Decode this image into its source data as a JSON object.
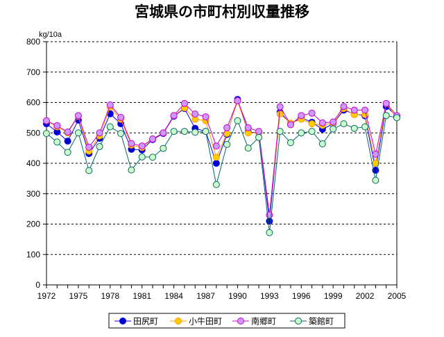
{
  "chart_data": {
    "type": "line",
    "title": "宮城県の市町村別収量推移",
    "ylabel": "kg/10a",
    "xlabel": "",
    "x": [
      1972,
      1973,
      1974,
      1975,
      1976,
      1977,
      1978,
      1979,
      1980,
      1981,
      1982,
      1983,
      1984,
      1985,
      1986,
      1987,
      1988,
      1989,
      1990,
      1991,
      1992,
      1993,
      1994,
      1995,
      1996,
      1997,
      1998,
      1999,
      2000,
      2001,
      2002,
      2003,
      2004,
      2005
    ],
    "xticks": [
      "1972",
      "1975",
      "1978",
      "1981",
      "1984",
      "1987",
      "1990",
      "1993",
      "1996",
      "1999",
      "2002",
      "2005"
    ],
    "xlim": [
      1972,
      2005
    ],
    "yticks": [
      "0",
      "100",
      "200",
      "300",
      "400",
      "500",
      "600",
      "700",
      "800"
    ],
    "ylim": [
      0,
      800
    ],
    "grid": "horizontal dashed",
    "legend_position": "bottom",
    "series": [
      {
        "name": "田尻町",
        "color": "#0000ff",
        "marker_fill": "#0000cc",
        "values": [
          530,
          503,
          473,
          542,
          432,
          482,
          563,
          530,
          446,
          444,
          478,
          498,
          555,
          580,
          515,
          505,
          400,
          495,
          610,
          503,
          500,
          210,
          568,
          530,
          550,
          535,
          512,
          530,
          575,
          562,
          556,
          377,
          587,
          555
        ]
      },
      {
        "name": "小牛田町",
        "color": "#ff9900",
        "marker_fill": "#ffcc00",
        "values": [
          540,
          520,
          500,
          555,
          440,
          490,
          585,
          545,
          460,
          452,
          480,
          500,
          557,
          582,
          545,
          540,
          420,
          498,
          605,
          500,
          500,
          230,
          562,
          532,
          545,
          530,
          525,
          532,
          580,
          560,
          560,
          400,
          596,
          550
        ]
      },
      {
        "name": "南郷町",
        "color": "#cc00cc",
        "marker_fill": "#cc99ff",
        "values": [
          540,
          524,
          503,
          557,
          453,
          500,
          592,
          551,
          465,
          457,
          480,
          500,
          557,
          597,
          562,
          553,
          457,
          517,
          606,
          517,
          505,
          230,
          586,
          527,
          557,
          565,
          533,
          536,
          587,
          575,
          575,
          430,
          597,
          557
        ]
      },
      {
        "name": "築館町",
        "color": "#006666",
        "marker_fill": "#ccffcc",
        "values": [
          498,
          470,
          436,
          500,
          376,
          455,
          520,
          498,
          378,
          421,
          420,
          449,
          505,
          505,
          502,
          505,
          330,
          462,
          540,
          450,
          485,
          172,
          505,
          468,
          500,
          505,
          464,
          513,
          530,
          515,
          520,
          344,
          557,
          550
        ]
      }
    ]
  }
}
